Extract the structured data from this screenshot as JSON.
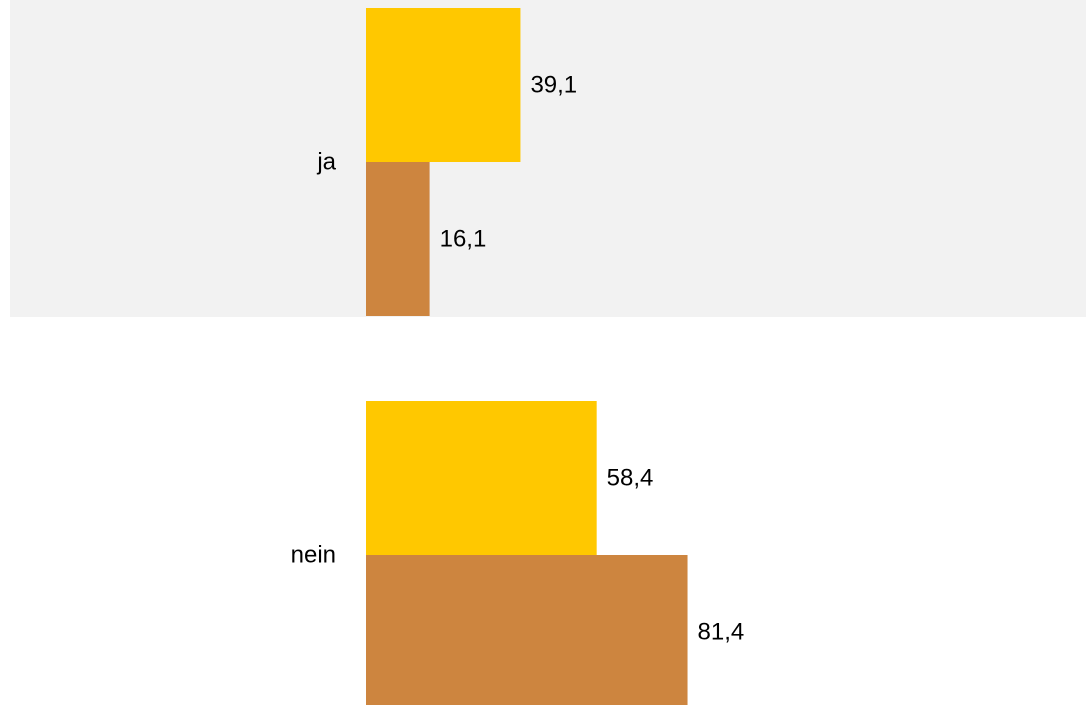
{
  "chart_data": {
    "type": "bar",
    "orientation": "horizontal",
    "categories": [
      "ja",
      "nein"
    ],
    "series": [
      {
        "color": "#FFC800",
        "values": [
          39.1,
          58.4
        ],
        "labels": [
          "39,1",
          "58,4"
        ]
      },
      {
        "color": "#CD853F",
        "values": [
          16.1,
          81.4
        ],
        "labels": [
          "16,1",
          "81,4"
        ]
      }
    ],
    "grid": false,
    "legend": "none",
    "band_color": "#F2F2F2"
  }
}
